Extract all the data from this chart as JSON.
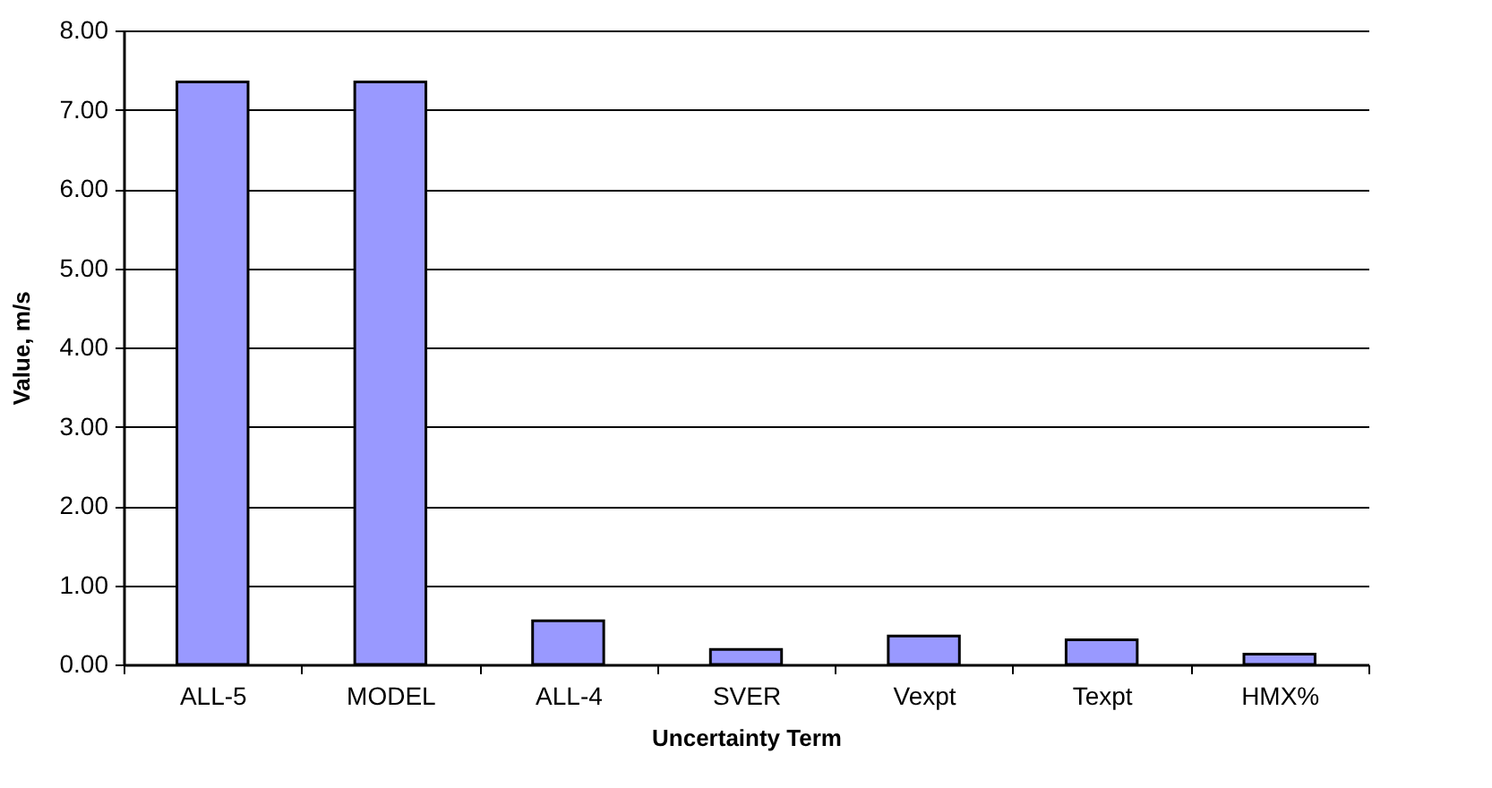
{
  "chart_data": {
    "type": "bar",
    "xlabel": "Uncertainty Term",
    "ylabel": "Value, m/s",
    "categories": [
      "ALL-5",
      "MODEL",
      "ALL-4",
      "SVER",
      "Vexpt",
      "Texpt",
      "HMX%"
    ],
    "values": [
      7.35,
      7.35,
      0.55,
      0.19,
      0.36,
      0.31,
      0.13
    ],
    "color": "#9999ff",
    "ylim": [
      0,
      8
    ],
    "yticks": [
      {
        "value": 0,
        "label": "0.00"
      },
      {
        "value": 1,
        "label": "1.00"
      },
      {
        "value": 2,
        "label": "2.00"
      },
      {
        "value": 3,
        "label": "3.00"
      },
      {
        "value": 4,
        "label": "4.00"
      },
      {
        "value": 5,
        "label": "5.00"
      },
      {
        "value": 6,
        "label": "6.00"
      },
      {
        "value": 7,
        "label": "7.00"
      },
      {
        "value": 8,
        "label": "8.00"
      }
    ],
    "grid": "y"
  }
}
